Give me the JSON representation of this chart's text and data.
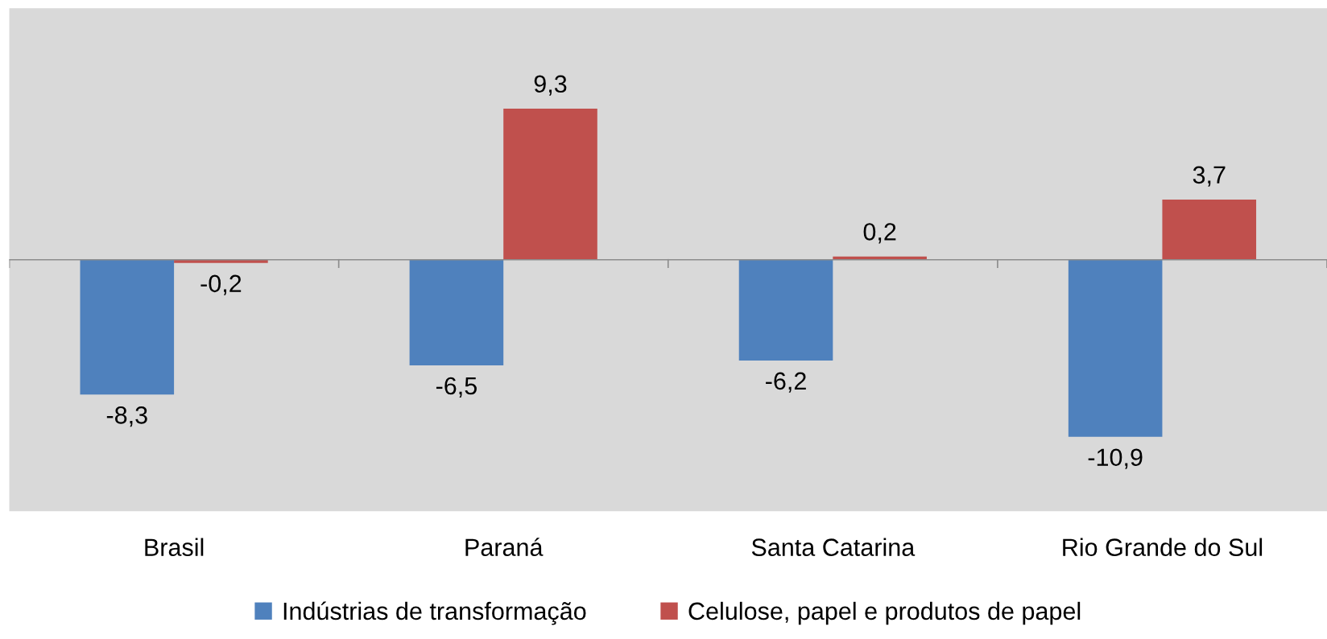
{
  "chart_data": {
    "type": "bar",
    "categories": [
      "Brasil",
      "Paraná",
      "Santa Catarina",
      "Rio Grande do Sul"
    ],
    "series": [
      {
        "name": "Indústrias de transformação",
        "color": "#4f81bd",
        "values": [
          -8.3,
          -6.5,
          -6.2,
          -10.9
        ],
        "value_labels": [
          "-8,3",
          "-6,5",
          "-6,2",
          "-10,9"
        ]
      },
      {
        "name": "Celulose, papel e produtos de papel",
        "color": "#c0504d",
        "values": [
          -0.2,
          9.3,
          0.2,
          3.7
        ],
        "value_labels": [
          "-0,2",
          "9,3",
          "0,2",
          "3,7"
        ]
      }
    ],
    "tick_labels": "x",
    "grid": false,
    "legend": "bottom"
  }
}
